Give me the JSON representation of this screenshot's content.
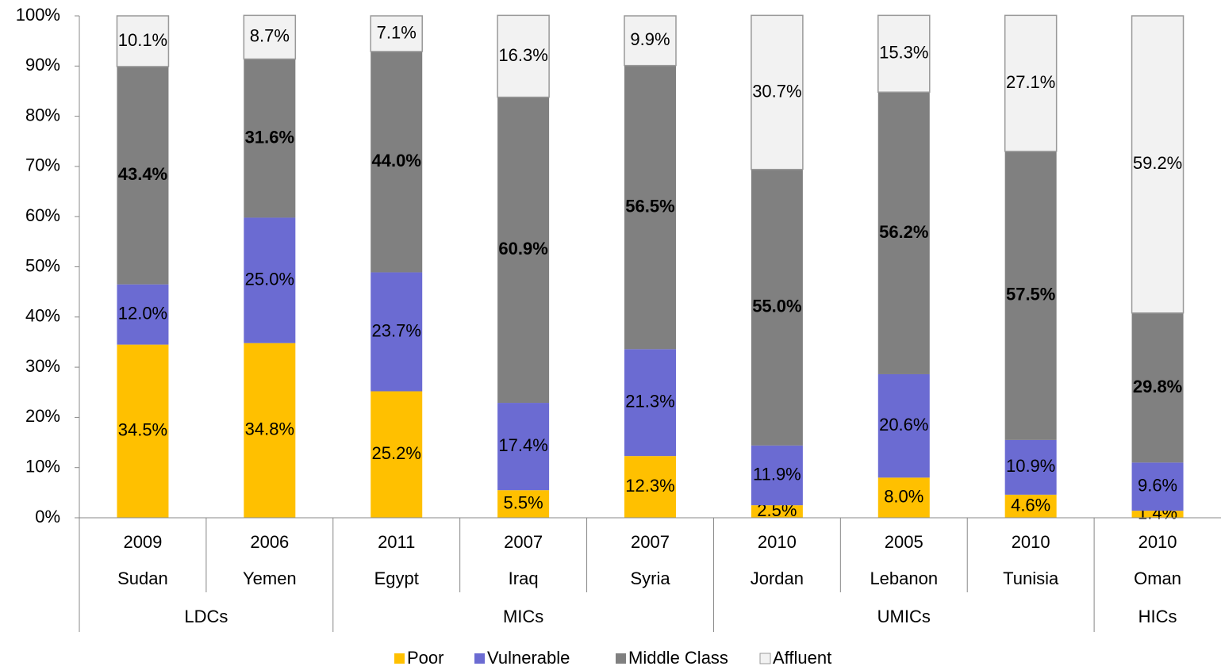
{
  "chart_data": {
    "type": "stacked_bar",
    "categories": [
      "Sudan",
      "Yemen",
      "Egypt",
      "Iraq",
      "Syria",
      "Jordan",
      "Lebanon",
      "Tunisia",
      "Oman"
    ],
    "years": [
      "2009",
      "2006",
      "2011",
      "2007",
      "2007",
      "2010",
      "2005",
      "2010",
      "2010"
    ],
    "groups": [
      {
        "name": "LDCs",
        "size": 2
      },
      {
        "name": "MICs",
        "size": 3
      },
      {
        "name": "UMICs",
        "size": 3
      },
      {
        "name": "HICs",
        "size": 1
      }
    ],
    "series": [
      {
        "name": "Poor",
        "color": "#FFC000",
        "values": [
          34.5,
          34.8,
          25.2,
          5.5,
          12.3,
          2.5,
          8.0,
          4.6,
          1.4
        ],
        "value_labels": [
          "34.5%",
          "34.8%",
          "25.2%",
          "5.5%",
          "12.3%",
          "2.5%",
          "8.0%",
          "4.6%",
          "1.4%"
        ]
      },
      {
        "name": "Vulnerable",
        "color": "#6B6BD2",
        "values": [
          12.0,
          25.0,
          23.7,
          17.4,
          21.3,
          11.9,
          20.6,
          10.9,
          9.6
        ],
        "value_labels": [
          "12.0%",
          "25.0%",
          "23.7%",
          "17.4%",
          "21.3%",
          "11.9%",
          "20.6%",
          "10.9%",
          "9.6%"
        ]
      },
      {
        "name": "Middle Class",
        "color": "#808080",
        "bold": true,
        "values": [
          43.4,
          31.6,
          44.0,
          60.9,
          56.5,
          55.0,
          56.2,
          57.5,
          29.8
        ],
        "value_labels": [
          "43.4%",
          "31.6%",
          "44.0%",
          "60.9%",
          "56.5%",
          "55.0%",
          "56.2%",
          "57.5%",
          "29.8%"
        ]
      },
      {
        "name": "Affluent",
        "color": "#F2F2F2",
        "values": [
          10.1,
          8.7,
          7.1,
          16.3,
          9.9,
          30.7,
          15.3,
          27.1,
          59.2
        ],
        "value_labels": [
          "10.1%",
          "8.7%",
          "7.1%",
          "16.3%",
          "9.9%",
          "30.7%",
          "15.3%",
          "27.1%",
          "59.2%"
        ]
      }
    ],
    "ylim": [
      0,
      100
    ],
    "yticks": [
      {
        "value": 0,
        "label": "0%"
      },
      {
        "value": 10,
        "label": "10%"
      },
      {
        "value": 20,
        "label": "20%"
      },
      {
        "value": 30,
        "label": "30%"
      },
      {
        "value": 40,
        "label": "40%"
      },
      {
        "value": 50,
        "label": "50%"
      },
      {
        "value": 60,
        "label": "60%"
      },
      {
        "value": 70,
        "label": "70%"
      },
      {
        "value": 80,
        "label": "80%"
      },
      {
        "value": 90,
        "label": "90%"
      },
      {
        "value": 100,
        "label": "100%"
      }
    ],
    "legend": "bottom"
  }
}
